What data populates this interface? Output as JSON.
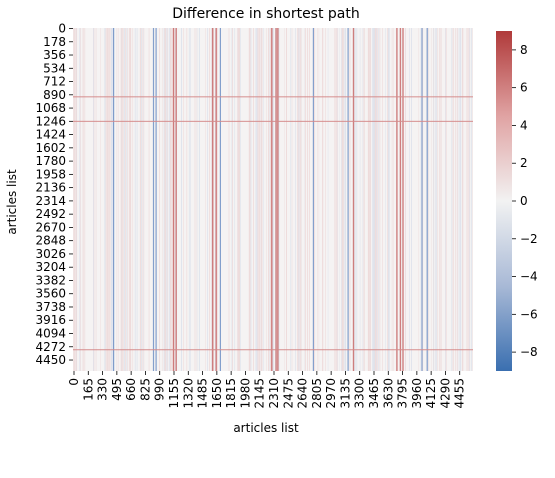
{
  "chart_data": {
    "type": "heatmap",
    "title": "Difference in shortest path",
    "xlabel": "articles list",
    "ylabel": "articles list",
    "x_ticks": [
      "0",
      "165",
      "330",
      "495",
      "660",
      "825",
      "990",
      "1155",
      "1320",
      "1485",
      "1650",
      "1815",
      "1980",
      "2145",
      "2310",
      "2475",
      "2640",
      "2805",
      "2970",
      "3135",
      "3300",
      "3465",
      "3630",
      "3795",
      "3960",
      "4125",
      "4290",
      "4455"
    ],
    "y_ticks": [
      "0",
      "178",
      "356",
      "534",
      "712",
      "890",
      "1068",
      "1246",
      "1424",
      "1602",
      "1780",
      "1958",
      "2136",
      "2314",
      "2492",
      "2670",
      "2848",
      "3026",
      "3204",
      "3382",
      "3560",
      "3738",
      "3916",
      "4094",
      "4272",
      "4450"
    ],
    "n_rows": 4604,
    "n_cols": 4604,
    "colorbar": {
      "min": -9,
      "max": 9,
      "ticks": [
        "8",
        "6",
        "4",
        "2",
        "0",
        "−2",
        "−4",
        "−6",
        "−8"
      ],
      "colors": {
        "low": "#3a6fb0",
        "mid": "#f2f2f2",
        "high": "#b03a3a"
      }
    },
    "highlighted_columns": {
      "positive": [
        1150,
        1180,
        1600,
        1640,
        2280,
        2330,
        2350,
        3220,
        3720,
        3760,
        3790
      ],
      "negative": [
        460,
        920,
        950,
        1690,
        2760,
        3160,
        4010,
        4070
      ]
    },
    "highlighted_rows": {
      "positive": [
        915,
        1245,
        4310
      ]
    }
  }
}
